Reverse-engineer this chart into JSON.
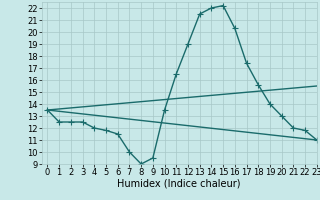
{
  "xlabel": "Humidex (Indice chaleur)",
  "ylabel": "",
  "background_color": "#c8e8e8",
  "grid_color": "#a8c8c8",
  "line_color": "#1a6b6b",
  "xlim": [
    -0.5,
    23
  ],
  "ylim": [
    9,
    22.5
  ],
  "yticks": [
    9,
    10,
    11,
    12,
    13,
    14,
    15,
    16,
    17,
    18,
    19,
    20,
    21,
    22
  ],
  "xticks": [
    0,
    1,
    2,
    3,
    4,
    5,
    6,
    7,
    8,
    9,
    10,
    11,
    12,
    13,
    14,
    15,
    16,
    17,
    18,
    19,
    20,
    21,
    22,
    23
  ],
  "series": [
    {
      "x": [
        0,
        1,
        2,
        3,
        4,
        5,
        6,
        7,
        8,
        9,
        10,
        11,
        12,
        13,
        14,
        15,
        16,
        17,
        18,
        19,
        20,
        21,
        22,
        23
      ],
      "y": [
        13.5,
        12.5,
        12.5,
        12.5,
        12.0,
        11.8,
        11.5,
        10.0,
        9.0,
        9.5,
        13.5,
        16.5,
        19.0,
        21.5,
        22.0,
        22.2,
        20.3,
        17.4,
        15.6,
        14.0,
        13.0,
        12.0,
        11.8,
        11.0
      ],
      "marker": "+"
    },
    {
      "x": [
        0,
        23
      ],
      "y": [
        13.5,
        15.5
      ],
      "marker": null
    },
    {
      "x": [
        0,
        23
      ],
      "y": [
        13.5,
        11.0
      ],
      "marker": null
    }
  ],
  "font_size_xlabel": 7,
  "font_size_ticks": 6,
  "marker_size": 4,
  "line_width": 1.0
}
